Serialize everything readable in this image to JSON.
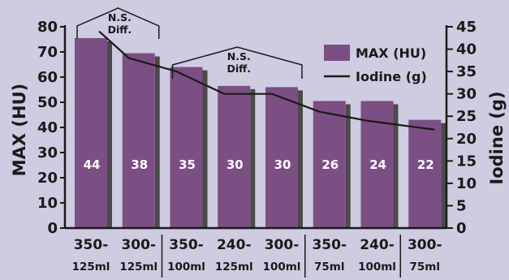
{
  "chart_data": {
    "type": "bar",
    "categories": [
      {
        "line1": "350-",
        "line2": "125ml"
      },
      {
        "line1": "300-",
        "line2": "125ml"
      },
      {
        "line1": "350-",
        "line2": "100ml"
      },
      {
        "line1": "240-",
        "line2": "125ml"
      },
      {
        "line1": "300-",
        "line2": "100ml"
      },
      {
        "line1": "350-",
        "line2": "75ml"
      },
      {
        "line1": "240-",
        "line2": "100ml"
      },
      {
        "line1": "300-",
        "line2": "75ml"
      }
    ],
    "series": [
      {
        "name": "MAX (HU)",
        "type": "bar",
        "axis": "left",
        "values": [
          75.5,
          69.5,
          64,
          56.5,
          56,
          50.5,
          50.5,
          43
        ]
      },
      {
        "name": "Iodine (g)",
        "type": "line",
        "axis": "right",
        "values": [
          44,
          38,
          35,
          30,
          30,
          26,
          24,
          22
        ]
      }
    ],
    "bar_labels": [
      "44",
      "38",
      "35",
      "30",
      "30",
      "26",
      "24",
      "22"
    ],
    "ylabel": "MAX (HU)",
    "y2label": "Iodine (g)",
    "ylim": [
      0,
      80
    ],
    "y2lim": [
      0,
      45
    ],
    "yticks": [
      "0",
      "10",
      "20",
      "30",
      "40",
      "50",
      "60",
      "70",
      "80"
    ],
    "y2ticks": [
      "0",
      "5",
      "10",
      "15",
      "20",
      "25",
      "30",
      "35",
      "40",
      "45"
    ],
    "annotations": [
      {
        "line1": "N.S.",
        "line2": "Diff.",
        "from_index": 0,
        "to_index": 1
      },
      {
        "line1": "N.S.",
        "line2": "Diff.",
        "from_index": 2,
        "to_index": 4
      }
    ],
    "separators_after_index": [
      1,
      4,
      6
    ],
    "legend_position": "top-right",
    "grid": false,
    "colors": {
      "bar": "#7c4f84",
      "bar_shadow": "#4a4a4a",
      "line": "#1a1a1a",
      "background": "#cfcbe0"
    }
  }
}
